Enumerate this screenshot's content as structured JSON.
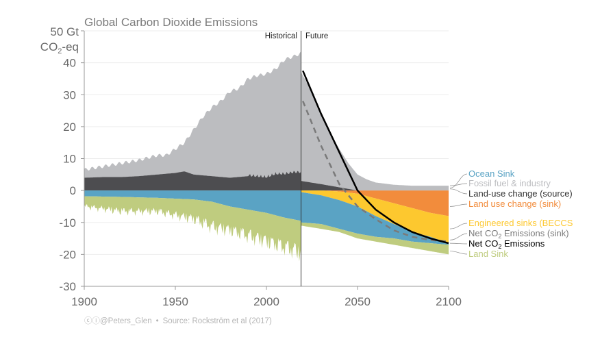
{
  "chart_data": {
    "type": "area",
    "title": "Global Carbon Dioxide Emissions",
    "ylabel_line1": "50 Gt",
    "ylabel_line2_main": "CO",
    "ylabel_line2_sub": "2",
    "ylabel_line2_tail": "-eq",
    "xlabel": "",
    "xlim": [
      1900,
      2100
    ],
    "ylim": [
      -30,
      50
    ],
    "xticks": [
      "1900",
      "1950",
      "2000",
      "2050",
      "2100"
    ],
    "xtick_values": [
      1900,
      1950,
      2000,
      2050,
      2100
    ],
    "yticks": [
      "40",
      "30",
      "20",
      "10",
      "0",
      "-10",
      "-20",
      "-30"
    ],
    "ytick_values": [
      40,
      30,
      20,
      10,
      0,
      -10,
      -20,
      -30
    ],
    "grid": true,
    "divider_year": 2019,
    "period_labels": {
      "historical": "Historical",
      "future": "Future"
    },
    "colors": {
      "fossil": "#bcbdc0",
      "landuse_source": "#4d4d50",
      "ocean": "#5aa3c4",
      "land_sink": "#bfcc7f",
      "landuse_sink": "#f28c3c",
      "beccs": "#fdc82f",
      "net": "#000000",
      "net_sink": "#7a7a7a"
    },
    "series": [
      {
        "name": "Fossil fuel & industry (top of stack)",
        "key": "fossil_top",
        "x": [
          1900,
          1910,
          1920,
          1930,
          1940,
          1945,
          1950,
          1955,
          1960,
          1965,
          1970,
          1975,
          1980,
          1985,
          1990,
          1995,
          2000,
          2005,
          2010,
          2015,
          2019
        ],
        "values": [
          6.5,
          7.5,
          8.5,
          9.5,
          11,
          11,
          13,
          15,
          19,
          23,
          26,
          28,
          31,
          32,
          35,
          36,
          36.5,
          38,
          41,
          42,
          43
        ]
      },
      {
        "name": "Land-use change (source)",
        "key": "landuse_source",
        "x": [
          1900,
          1910,
          1920,
          1930,
          1940,
          1950,
          1955,
          1960,
          1970,
          1980,
          1990,
          2000,
          2005,
          2010,
          2015,
          2019
        ],
        "values": [
          4,
          4.2,
          4.2,
          4.5,
          5,
          5.5,
          6,
          5,
          4.5,
          4,
          4.5,
          4,
          5,
          5,
          5.5,
          5.5
        ]
      },
      {
        "name": "Ocean Sink",
        "key": "ocean",
        "x": [
          1900,
          1920,
          1940,
          1960,
          1970,
          1980,
          1990,
          2000,
          2010,
          2019
        ],
        "values": [
          -1.8,
          -2,
          -2.3,
          -2.8,
          -3.5,
          -5,
          -6,
          -7,
          -8.5,
          -9.5
        ]
      },
      {
        "name": "Land Sink",
        "key": "land_sink",
        "x": [
          1900,
          1920,
          1940,
          1960,
          1970,
          1980,
          1990,
          2000,
          2010,
          2019
        ],
        "values": [
          -6,
          -8,
          -8,
          -11,
          -14,
          -15,
          -17,
          -19,
          -21,
          -23
        ]
      },
      {
        "name": "Future fossil top",
        "key": "future_fossil",
        "x": [
          2019,
          2025,
          2030,
          2035,
          2040,
          2045,
          2050,
          2055,
          2060,
          2070,
          2080,
          2090,
          2100
        ],
        "values": [
          37,
          31,
          24,
          18,
          13,
          8.5,
          5,
          3.5,
          2.5,
          1.8,
          1.5,
          1.5,
          1.5
        ]
      },
      {
        "name": "Future land-use source",
        "key": "future_landuse",
        "x": [
          2019,
          2030,
          2040,
          2050
        ],
        "values": [
          3,
          2,
          1,
          0
        ]
      },
      {
        "name": "Land use change (sink)",
        "key": "future_landuse_sink",
        "x": [
          2030,
          2040,
          2050,
          2060,
          2070,
          2080,
          2090,
          2100
        ],
        "values": [
          0,
          -0.3,
          -1,
          -2.5,
          -4,
          -5.5,
          -7,
          -8
        ]
      },
      {
        "name": "Engineered sinks (BECCS)",
        "key": "future_beccs_bottom",
        "x": [
          2019,
          2030,
          2040,
          2050,
          2060,
          2070,
          2080,
          2090,
          2100
        ],
        "values": [
          -0.5,
          -1.5,
          -3,
          -5,
          -8,
          -10.5,
          -13,
          -14.5,
          -16.5
        ]
      },
      {
        "name": "Ocean Sink (future)",
        "key": "future_ocean",
        "x": [
          2019,
          2030,
          2040,
          2050,
          2060,
          2070,
          2080,
          2090,
          2100
        ],
        "values": [
          -10,
          -10.5,
          -12,
          -13.5,
          -14.5,
          -15,
          -16,
          -16.5,
          -17
        ]
      },
      {
        "name": "Land Sink (future)",
        "key": "future_land",
        "x": [
          2019,
          2030,
          2040,
          2050,
          2060,
          2070,
          2080,
          2090,
          2100
        ],
        "values": [
          -11,
          -12,
          -13,
          -15,
          -16,
          -17,
          -18,
          -19,
          -20
        ]
      },
      {
        "name": "Net CO2 Emissions",
        "key": "net",
        "x": [
          2020,
          2030,
          2040,
          2050,
          2060,
          2070,
          2080,
          2090,
          2100
        ],
        "values": [
          37.5,
          24,
          12,
          0,
          -6,
          -10,
          -13,
          -15,
          -16.5
        ]
      },
      {
        "name": "Net CO2 Emissions (sink)",
        "key": "net_sink",
        "x": [
          2020,
          2030,
          2040,
          2050,
          2060,
          2070,
          2080,
          2090,
          2100
        ],
        "values": [
          28,
          14,
          2,
          -5,
          -9,
          -12.5,
          -14.5,
          -15.5,
          -16
        ]
      }
    ],
    "legend": [
      {
        "label": "Ocean Sink",
        "color": "#5aa3c4",
        "value": 0.8
      },
      {
        "label": "Fossil fuel & industry",
        "color": "#bcbdc0",
        "value": 1.5
      },
      {
        "label": "Land-use change (source)",
        "color": "#333333",
        "value": 0.5
      },
      {
        "label": "Land use change (sink)",
        "color": "#f28c3c",
        "value": -5
      },
      {
        "label": "Engineered sinks (BECCS",
        "color": "#fdc82f",
        "value": -12
      },
      {
        "label_main": "Net CO",
        "label_sub": "2",
        "label_tail": " Emissions (sink)",
        "color": "#7a7a7a",
        "value": -15.5
      },
      {
        "label_main": "Net CO",
        "label_sub": "2",
        "label_tail": " Emissions",
        "color": "#000000",
        "value": -16.5
      },
      {
        "label": "Land Sink",
        "color": "#bfcc7f",
        "value": -19
      }
    ],
    "legend_placement": "right"
  },
  "footer": {
    "icons": "ⓒⓘ",
    "handle": "@Peters_Glen",
    "bullet": "•",
    "source": "Source: Rockström et al (2017)"
  }
}
